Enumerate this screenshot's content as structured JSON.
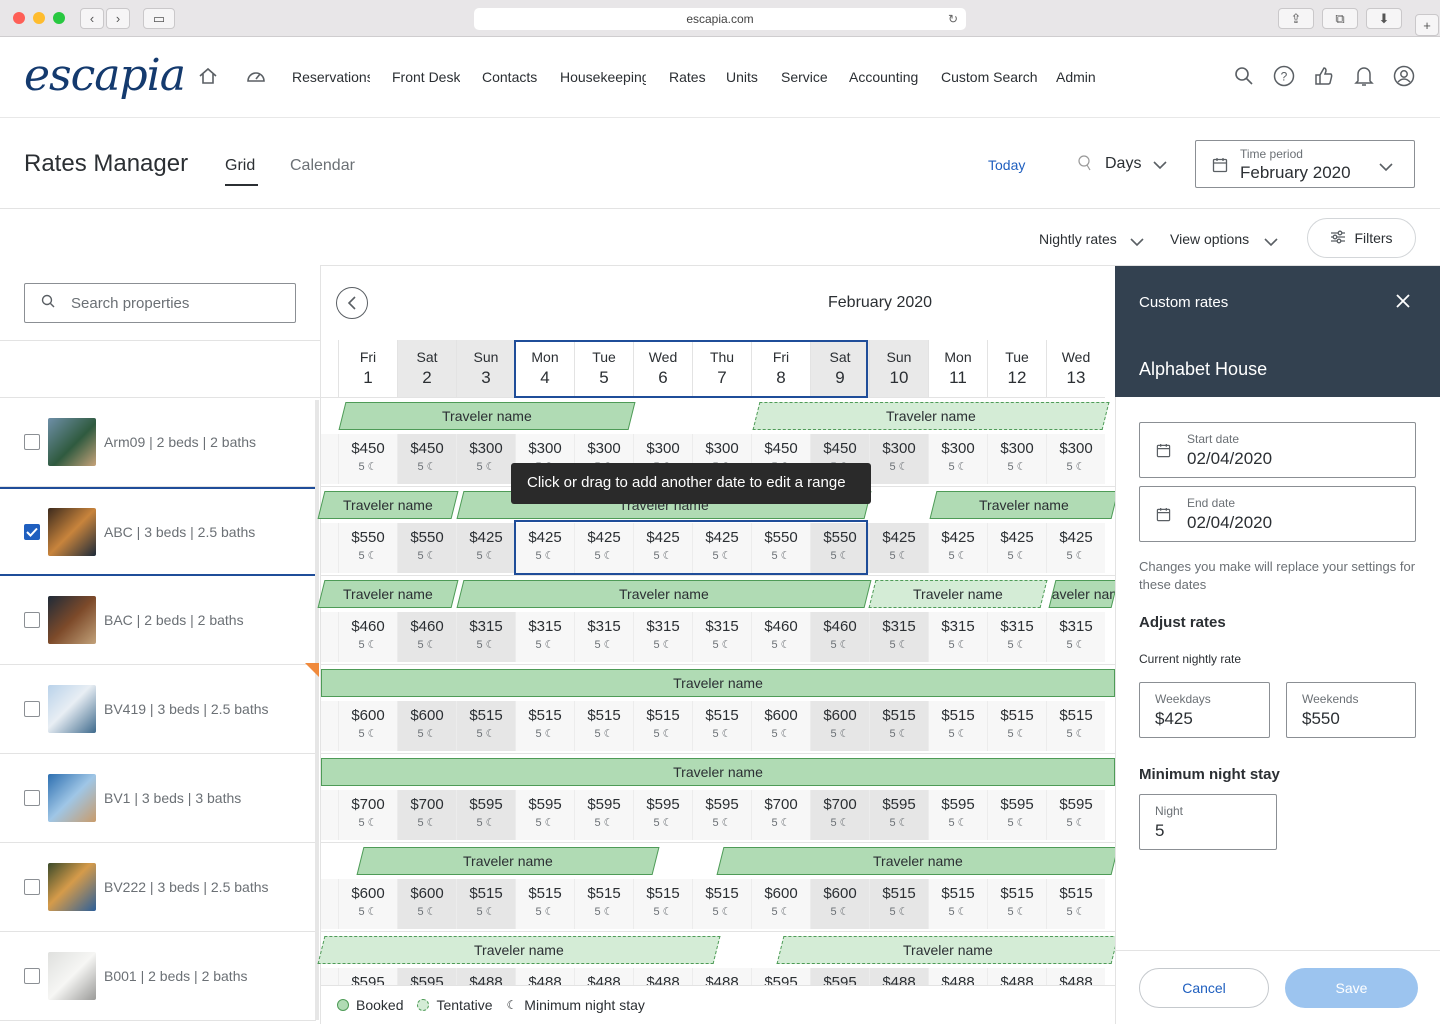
{
  "browser": {
    "url": "escapia.com"
  },
  "nav": {
    "logo": "escapia",
    "items": [
      "Reservations",
      "Front Desk",
      "Contacts",
      "Housekeeping",
      "Rates",
      "Units",
      "Service",
      "Accounting",
      "Custom Search",
      "Admin"
    ]
  },
  "header": {
    "title": "Rates Manager",
    "tabs": [
      "Grid",
      "Calendar"
    ],
    "today": "Today",
    "view": "Days",
    "time_period_label": "Time period",
    "time_period_value": "February 2020"
  },
  "toolbar": {
    "nightly_rates": "Nightly rates",
    "view_options": "View options",
    "filters": "Filters"
  },
  "search": {
    "placeholder": "Search properties"
  },
  "properties": [
    {
      "label": "Arm09 | 2 beds | 2 baths",
      "checked": false
    },
    {
      "label": "ABC | 3 beds | 2.5 baths",
      "checked": true
    },
    {
      "label": "BAC | 2 beds | 2 baths",
      "checked": false
    },
    {
      "label": "BV419 | 3 beds | 2.5 baths",
      "checked": false
    },
    {
      "label": "BV1 | 3 beds | 3 baths",
      "checked": false
    },
    {
      "label": "BV222 | 3 beds | 2.5 baths",
      "checked": false
    },
    {
      "label": "B001 | 2 beds | 2 baths",
      "checked": false
    }
  ],
  "grid": {
    "month": "February 2020",
    "days": [
      {
        "dow": "Fri",
        "d": "1"
      },
      {
        "dow": "Sat",
        "d": "2"
      },
      {
        "dow": "Sun",
        "d": "3"
      },
      {
        "dow": "Mon",
        "d": "4"
      },
      {
        "dow": "Tue",
        "d": "5"
      },
      {
        "dow": "Wed",
        "d": "6"
      },
      {
        "dow": "Thu",
        "d": "7"
      },
      {
        "dow": "Fri",
        "d": "8"
      },
      {
        "dow": "Sat",
        "d": "9"
      },
      {
        "dow": "Sun",
        "d": "10"
      },
      {
        "dow": "Mon",
        "d": "11"
      },
      {
        "dow": "Tue",
        "d": "12"
      },
      {
        "dow": "Wed",
        "d": "13"
      }
    ],
    "rates": [
      [
        "$450",
        "$450",
        "$300",
        "$300",
        "$300",
        "$300",
        "$300",
        "$450",
        "$450",
        "$300",
        "$300",
        "$300",
        "$300"
      ],
      [
        "$550",
        "$550",
        "$425",
        "$425",
        "$425",
        "$425",
        "$425",
        "$550",
        "$550",
        "$425",
        "$425",
        "$425",
        "$425"
      ],
      [
        "$460",
        "$460",
        "$315",
        "$315",
        "$315",
        "$315",
        "$315",
        "$460",
        "$460",
        "$315",
        "$315",
        "$315",
        "$315"
      ],
      [
        "$600",
        "$600",
        "$515",
        "$515",
        "$515",
        "$515",
        "$515",
        "$600",
        "$600",
        "$515",
        "$515",
        "$515",
        "$515"
      ],
      [
        "$700",
        "$700",
        "$595",
        "$595",
        "$595",
        "$595",
        "$595",
        "$700",
        "$700",
        "$595",
        "$595",
        "$595",
        "$595"
      ],
      [
        "$600",
        "$600",
        "$515",
        "$515",
        "$515",
        "$515",
        "$515",
        "$600",
        "$600",
        "$515",
        "$515",
        "$515",
        "$515"
      ],
      [
        "$595",
        "$595",
        "$488",
        "$488",
        "$488",
        "$488",
        "$488",
        "$595",
        "$595",
        "$488",
        "$488",
        "$488",
        "$488"
      ]
    ],
    "min_nights": "5",
    "booking_label": "Traveler name",
    "tooltip": "Click or drag to add another date to edit a range"
  },
  "legend": {
    "booked": "Booked",
    "tentative": "Tentative",
    "min_stay": "Minimum night stay"
  },
  "panel": {
    "title": "Custom rates",
    "property": "Alphabet House",
    "start_label": "Start date",
    "start_value": "02/04/2020",
    "end_label": "End date",
    "end_value": "02/04/2020",
    "note": "Changes you make will replace your settings for these dates",
    "adjust": "Adjust rates",
    "current": "Current nightly rate",
    "weekdays_label": "Weekdays",
    "weekdays_value": "$425",
    "weekends_label": "Weekends",
    "weekends_value": "$550",
    "min_stay_title": "Minimum night stay",
    "night_label": "Night",
    "night_value": "5",
    "cancel": "Cancel",
    "save": "Save"
  },
  "colors": {
    "navy": "#143a6e",
    "selection": "#1f4d99",
    "booked": "#b0dbb4",
    "panel_header": "#334150",
    "save": "#9cc4ef"
  }
}
